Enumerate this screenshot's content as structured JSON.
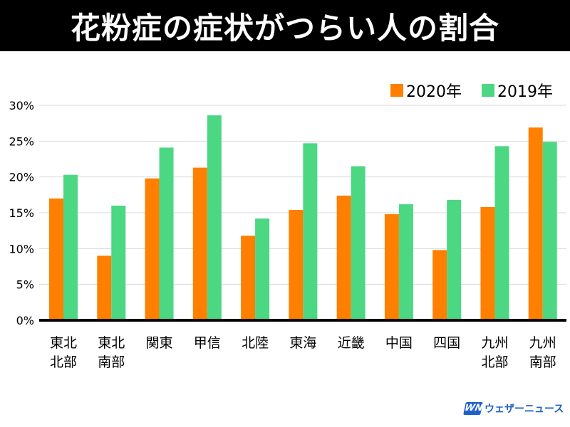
{
  "title": "花粉症の症状がつらい人の割合",
  "logo": {
    "mark": "WN",
    "text": "ウェザーニュース",
    "icon": "weathernews-logo",
    "color": "#1f5fc7"
  },
  "colors": {
    "s2020": "#ff7f00",
    "s2019": "#4cd783"
  },
  "chart_data": {
    "type": "bar",
    "title": "花粉症の症状がつらい人の割合",
    "categories": [
      [
        "東北",
        "北部"
      ],
      [
        "東北",
        "南部"
      ],
      [
        "関東"
      ],
      [
        "甲信"
      ],
      [
        "北陸"
      ],
      [
        "東海"
      ],
      [
        "近畿"
      ],
      [
        "中国"
      ],
      [
        "四国"
      ],
      [
        "九州",
        "北部"
      ],
      [
        "九州",
        "南部"
      ]
    ],
    "series": [
      {
        "name": "2020年",
        "color": "#ff7f00",
        "values": [
          17.0,
          9.0,
          19.8,
          21.3,
          11.8,
          15.4,
          17.4,
          14.8,
          9.8,
          15.8,
          26.9
        ]
      },
      {
        "name": "2019年",
        "color": "#4cd783",
        "values": [
          20.3,
          16.0,
          24.1,
          28.6,
          14.2,
          24.7,
          21.5,
          16.2,
          16.8,
          24.3,
          24.9
        ]
      }
    ],
    "ylim": [
      0,
      30
    ],
    "yticks": [
      0,
      5,
      10,
      15,
      20,
      25,
      30
    ],
    "ytick_labels": [
      "0%",
      "5%",
      "10%",
      "15%",
      "20%",
      "25%",
      "30%"
    ],
    "grid": true,
    "legend_position": "top-right"
  }
}
